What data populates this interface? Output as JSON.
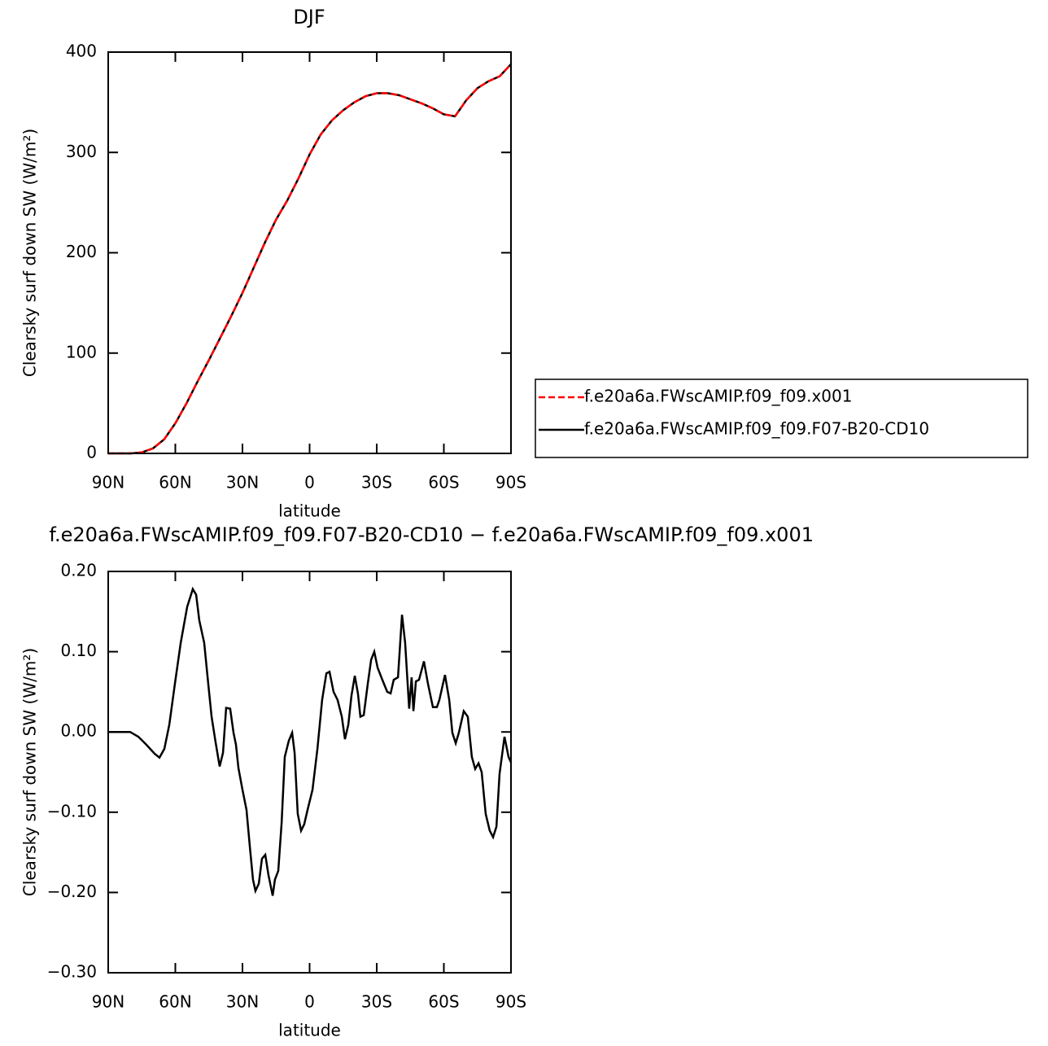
{
  "chart_data": [
    {
      "type": "line",
      "title": "DJF",
      "xlabel": "latitude",
      "ylabel": "Clearsky surf down SW (W/m²)",
      "x": [
        90,
        85,
        80,
        75,
        70,
        65,
        60,
        55,
        50,
        45,
        40,
        35,
        30,
        25,
        20,
        15,
        10,
        5,
        0,
        -5,
        -10,
        -15,
        -20,
        -25,
        -30,
        -35,
        -40,
        -45,
        -50,
        -55,
        -60,
        -65,
        -70,
        -75,
        -80,
        -85,
        -90
      ],
      "series": [
        {
          "name": "f.e20a6a.FWscAMIP.f09_f09.x001",
          "color": "#ff0000",
          "dashed": true,
          "values": [
            0,
            0,
            0,
            1,
            5,
            14,
            30,
            50,
            72,
            93,
            115,
            137,
            160,
            185,
            210,
            233,
            252,
            274,
            298,
            318,
            332,
            342,
            350,
            356,
            359,
            359,
            357,
            353,
            349,
            344,
            338,
            336,
            352,
            364,
            371,
            376,
            388
          ]
        },
        {
          "name": "f.e20a6a.FWscAMIP.f09_f09.F07-B20-CD10",
          "color": "#000000",
          "dashed": false,
          "values": [
            0,
            0,
            0,
            1,
            5,
            14,
            30,
            50,
            72,
            93,
            115,
            137,
            160,
            185,
            210,
            233,
            252,
            274,
            298,
            318,
            332,
            342,
            350,
            356,
            359,
            359,
            357,
            353,
            349,
            344,
            338,
            336,
            352,
            364,
            371,
            376,
            388
          ]
        }
      ],
      "xlim": [
        90,
        -90
      ],
      "xticks": [
        {
          "value": 90,
          "label": "90N"
        },
        {
          "value": 60,
          "label": "60N"
        },
        {
          "value": 30,
          "label": "30N"
        },
        0,
        {
          "value": -30,
          "label": "30S"
        },
        {
          "value": -60,
          "label": "60S"
        },
        {
          "value": -90,
          "label": "90S"
        }
      ],
      "ylim": [
        0,
        400
      ],
      "yticks": [
        0,
        100,
        200,
        300,
        400
      ]
    },
    {
      "type": "line",
      "title": "f.e20a6a.FWscAMIP.f09_f09.F07-B20-CD10 − f.e20a6a.FWscAMIP.f09_f09.x001",
      "xlabel": "latitude",
      "ylabel": "Clearsky surf down SW (W/m²)",
      "x": [
        90,
        80.2,
        76.5,
        72.9,
        69.3,
        67.1,
        64.9,
        62.7,
        60.2,
        57.6,
        54.7,
        52.2,
        50.7,
        49.3,
        47.1,
        45.3,
        43.8,
        42.0,
        40.2,
        38.7,
        37.3,
        35.5,
        34.0,
        32.9,
        31.8,
        30.0,
        28.2,
        26.7,
        25.3,
        24.2,
        22.7,
        21.3,
        19.8,
        18.4,
        16.5,
        15.5,
        14.0,
        12.5,
        11.1,
        9.3,
        7.8,
        6.7,
        5.3,
        3.8,
        2.4,
        0.9,
        -1.3,
        -3.5,
        -5.6,
        -7.5,
        -8.9,
        -10.7,
        -12.5,
        -14.4,
        -15.8,
        -17.3,
        -18.7,
        -20.2,
        -21.6,
        -22.7,
        -24.2,
        -26.0,
        -27.5,
        -28.9,
        -30.4,
        -32.5,
        -34.7,
        -36.2,
        -37.6,
        -39.5,
        -41.3,
        -42.7,
        -44.5,
        -45.6,
        -46.4,
        -47.5,
        -48.9,
        -51.1,
        -52.9,
        -55.1,
        -56.9,
        -58.0,
        -60.5,
        -62.4,
        -63.8,
        -65.3,
        -66.7,
        -68.9,
        -70.7,
        -72.5,
        -74.0,
        -75.5,
        -76.9,
        -78.7,
        -80.5,
        -82.0,
        -83.5,
        -84.9,
        -87.1,
        -88.9,
        -90
      ],
      "series": [
        {
          "color": "#000000",
          "dashed": false,
          "values": [
            0,
            0,
            -0.006,
            -0.016,
            -0.027,
            -0.032,
            -0.021,
            0.009,
            0.06,
            0.111,
            0.156,
            0.178,
            0.171,
            0.139,
            0.111,
            0.06,
            0.019,
            -0.013,
            -0.043,
            -0.026,
            0.03,
            0.029,
            -0.001,
            -0.016,
            -0.045,
            -0.072,
            -0.097,
            -0.143,
            -0.184,
            -0.198,
            -0.189,
            -0.158,
            -0.153,
            -0.178,
            -0.204,
            -0.184,
            -0.173,
            -0.113,
            -0.031,
            -0.011,
            -0.001,
            -0.026,
            -0.102,
            -0.123,
            -0.115,
            -0.097,
            -0.072,
            -0.021,
            0.04,
            0.073,
            0.075,
            0.05,
            0.04,
            0.019,
            -0.009,
            0.009,
            0.045,
            0.07,
            0.048,
            0.019,
            0.021,
            0.06,
            0.09,
            0.1,
            0.08,
            0.065,
            0.05,
            0.048,
            0.065,
            0.068,
            0.146,
            0.111,
            0.029,
            0.068,
            0.026,
            0.063,
            0.065,
            0.088,
            0.06,
            0.031,
            0.031,
            0.04,
            0.071,
            0.04,
            -0.001,
            -0.014,
            -0.001,
            0.026,
            0.019,
            -0.031,
            -0.046,
            -0.039,
            -0.05,
            -0.102,
            -0.123,
            -0.131,
            -0.118,
            -0.052,
            -0.006,
            -0.031,
            -0.038
          ]
        }
      ],
      "xlim": [
        90,
        -90
      ],
      "xticks": [
        {
          "value": 90,
          "label": "90N"
        },
        {
          "value": 60,
          "label": "60N"
        },
        {
          "value": 30,
          "label": "30N"
        },
        0,
        {
          "value": -30,
          "label": "30S"
        },
        {
          "value": -60,
          "label": "60S"
        },
        {
          "value": -90,
          "label": "90S"
        }
      ],
      "ylim": [
        -0.3,
        0.2
      ],
      "yticks": [
        {
          "value": -0.3,
          "label": "−0.30"
        },
        {
          "value": -0.2,
          "label": "−0.20"
        },
        {
          "value": -0.1,
          "label": "−0.10"
        },
        {
          "value": 0,
          "label": "0.00"
        },
        {
          "value": 0.1,
          "label": "0.10"
        },
        {
          "value": 0.2,
          "label": "0.20"
        }
      ]
    }
  ]
}
